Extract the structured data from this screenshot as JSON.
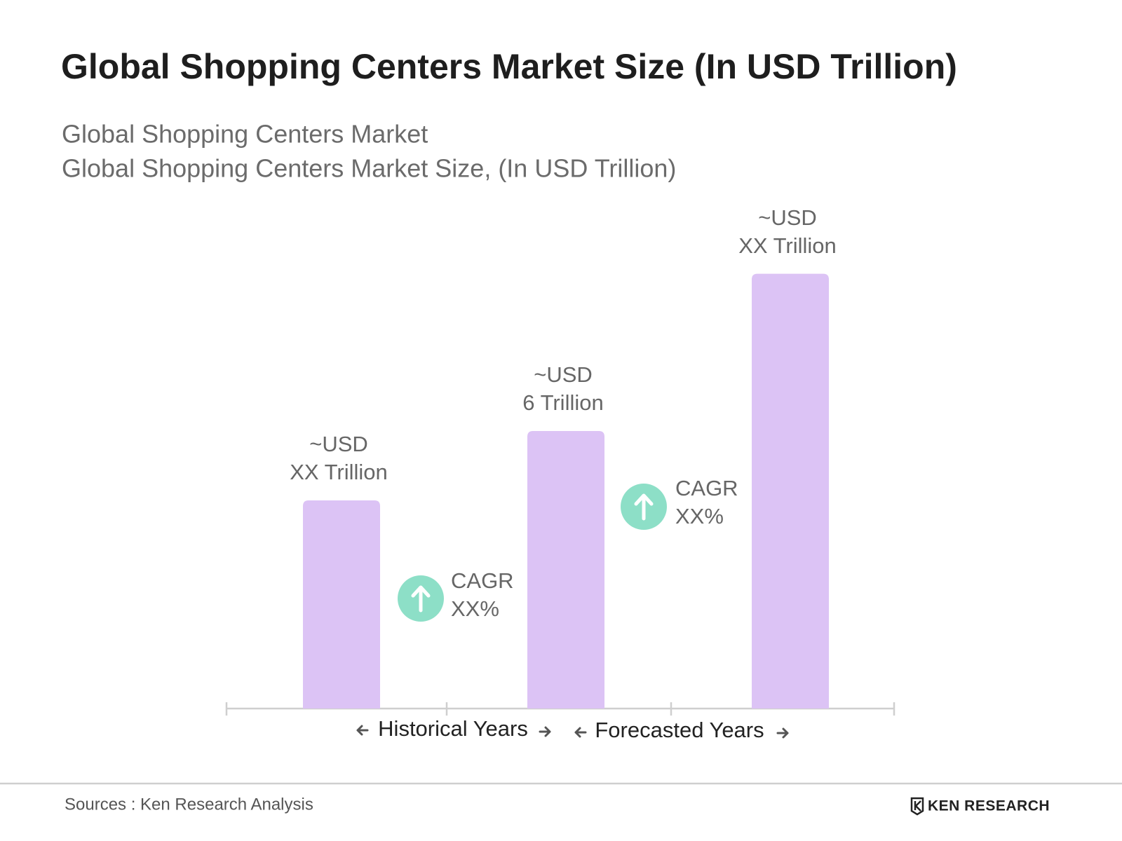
{
  "chart_data": {
    "type": "bar",
    "title": "Global Shopping Centers Market Size (In USD Trillion)",
    "subtitle": [
      "Global Shopping Centers Market",
      "Global Shopping Centers Market Size, (In USD Trillion)"
    ],
    "categories": [
      null,
      null,
      null
    ],
    "values": [
      4.5,
      6,
      9.4
    ],
    "value_labels": [
      [
        "~USD",
        "XX Trillion"
      ],
      [
        "~USD",
        "6 Trillion"
      ],
      [
        "~USD",
        "XX Trillion"
      ]
    ],
    "color": "#dcc3f5",
    "annotations": [
      [
        "CAGR",
        "XX%"
      ],
      [
        "CAGR",
        "XX%"
      ]
    ],
    "periods": [
      "Historical Years",
      "Forecasted Years"
    ]
  },
  "source": "Sources : Ken Research Analysis",
  "logo": "KEN RESEARCH"
}
